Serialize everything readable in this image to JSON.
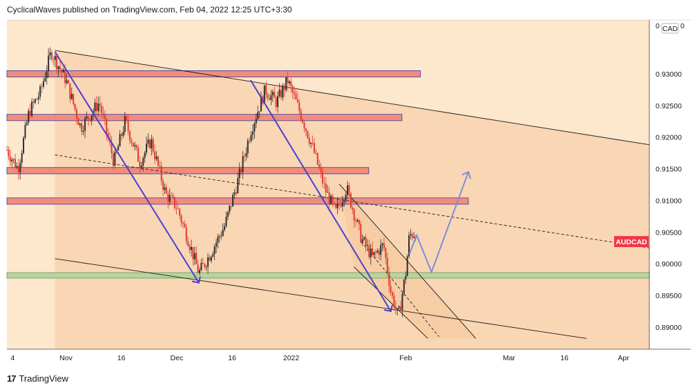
{
  "header": {
    "author": "CyclicalWaves",
    "text": " published on TradingView.com, Feb 04, 2022 12:25 UTC+3:30"
  },
  "footer": {
    "logo_glyph": "17",
    "brand": "TradingView"
  },
  "price_axis": {
    "currency": "CAD",
    "top_partial": "0",
    "top_right_partial": "0"
  },
  "symbol_tag": {
    "label": "AUDCAD",
    "color": "#f23645"
  },
  "colors": {
    "background": "#fde7cd",
    "zone_fill": "#f6c9a0",
    "resistance_fill": "#f28c7a",
    "support_fill": "#b7d3a2",
    "wave_line": "#4a3fd0",
    "projection_line": "#7b8ed8",
    "candle_up": "#2d2d2d",
    "candle_down": "#e0392b"
  },
  "chart_data": {
    "type": "candlestick",
    "symbol": "AUDCAD",
    "ylim": [
      0.8865,
      0.9385
    ],
    "yticks": [
      0.89,
      0.895,
      0.9,
      0.905,
      0.91,
      0.915,
      0.92,
      0.925,
      0.93
    ],
    "ytick_labels": [
      "0.89000",
      "0.89500",
      "0.90000",
      "0.90500",
      "0.91000",
      "0.91500",
      "0.92000",
      "0.92500",
      "0.93000"
    ],
    "xticks": [
      {
        "date": "2021-10-17",
        "label": "4"
      },
      {
        "date": "2021-11-01",
        "label": "Nov"
      },
      {
        "date": "2021-11-16",
        "label": "16"
      },
      {
        "date": "2021-12-01",
        "label": "Dec"
      },
      {
        "date": "2021-12-16",
        "label": "16"
      },
      {
        "date": "2022-01-01",
        "label": "2022"
      },
      {
        "date": "2022-02-01",
        "label": "Feb"
      },
      {
        "date": "2022-03-01",
        "label": "Mar"
      },
      {
        "date": "2022-03-16",
        "label": "16"
      },
      {
        "date": "2022-04-01",
        "label": "Apr"
      }
    ],
    "xlim": [
      "2021-10-16",
      "2022-04-08"
    ],
    "price_path": [
      {
        "date": "2021-10-16",
        "price": 0.918
      },
      {
        "date": "2021-10-19",
        "price": 0.915
      },
      {
        "date": "2021-10-22",
        "price": 0.924
      },
      {
        "date": "2021-10-25",
        "price": 0.927
      },
      {
        "date": "2021-10-28",
        "price": 0.9335
      },
      {
        "date": "2021-11-01",
        "price": 0.929
      },
      {
        "date": "2021-11-05",
        "price": 0.9215
      },
      {
        "date": "2021-11-10",
        "price": 0.9255
      },
      {
        "date": "2021-11-14",
        "price": 0.916
      },
      {
        "date": "2021-11-17",
        "price": 0.9225
      },
      {
        "date": "2021-11-21",
        "price": 0.916
      },
      {
        "date": "2021-11-24",
        "price": 0.9195
      },
      {
        "date": "2021-11-28",
        "price": 0.911
      },
      {
        "date": "2021-12-01",
        "price": 0.909
      },
      {
        "date": "2021-12-04",
        "price": 0.904
      },
      {
        "date": "2021-12-07",
        "price": 0.8985
      },
      {
        "date": "2021-12-10",
        "price": 0.9015
      },
      {
        "date": "2021-12-14",
        "price": 0.906
      },
      {
        "date": "2021-12-18",
        "price": 0.914
      },
      {
        "date": "2021-12-21",
        "price": 0.921
      },
      {
        "date": "2021-12-25",
        "price": 0.9275
      },
      {
        "date": "2021-12-28",
        "price": 0.9255
      },
      {
        "date": "2021-12-31",
        "price": 0.929
      },
      {
        "date": "2022-01-04",
        "price": 0.923
      },
      {
        "date": "2022-01-07",
        "price": 0.918
      },
      {
        "date": "2022-01-10",
        "price": 0.912
      },
      {
        "date": "2022-01-13",
        "price": 0.908
      },
      {
        "date": "2022-01-16",
        "price": 0.912
      },
      {
        "date": "2022-01-20",
        "price": 0.904
      },
      {
        "date": "2022-01-23",
        "price": 0.901
      },
      {
        "date": "2022-01-26",
        "price": 0.903
      },
      {
        "date": "2022-01-28",
        "price": 0.8955
      },
      {
        "date": "2022-01-30",
        "price": 0.8915
      },
      {
        "date": "2022-02-01",
        "price": 0.8985
      },
      {
        "date": "2022-02-02",
        "price": 0.9045
      },
      {
        "date": "2022-02-04",
        "price": 0.905
      }
    ],
    "horizontal_zones": [
      {
        "type": "resistance",
        "top": 0.9305,
        "bottom": 0.9295,
        "start": "2021-10-16",
        "end": "2022-02-05"
      },
      {
        "type": "resistance",
        "top": 0.9236,
        "bottom": 0.9226,
        "start": "2021-10-16",
        "end": "2022-01-31"
      },
      {
        "type": "resistance",
        "top": 0.9152,
        "bottom": 0.9142,
        "start": "2021-10-16",
        "end": "2022-01-22"
      },
      {
        "type": "resistance",
        "top": 0.9104,
        "bottom": 0.9094,
        "start": "2021-10-16",
        "end": "2022-02-18"
      },
      {
        "type": "support",
        "top": 0.8986,
        "bottom": 0.8978,
        "start": "2021-10-16",
        "end": "2022-04-08"
      }
    ],
    "channel_lines": [
      {
        "style": "solid",
        "points": [
          {
            "date": "2021-10-29",
            "price": 0.9337
          },
          {
            "date": "2022-04-08",
            "price": 0.9188
          }
        ]
      },
      {
        "style": "solid",
        "points": [
          {
            "date": "2021-10-29",
            "price": 0.9008
          },
          {
            "date": "2022-03-22",
            "price": 0.8882
          }
        ]
      },
      {
        "style": "dashed",
        "points": [
          {
            "date": "2021-10-29",
            "price": 0.9172
          },
          {
            "date": "2022-04-08",
            "price": 0.9025
          }
        ]
      },
      {
        "style": "solid",
        "points": [
          {
            "date": "2022-01-14",
            "price": 0.9126
          },
          {
            "date": "2022-02-20",
            "price": 0.8882
          }
        ]
      },
      {
        "style": "solid",
        "points": [
          {
            "date": "2022-01-18",
            "price": 0.8995
          },
          {
            "date": "2022-02-07",
            "price": 0.8882
          }
        ]
      },
      {
        "style": "dashed",
        "points": [
          {
            "date": "2022-01-20",
            "price": 0.9035
          },
          {
            "date": "2022-02-10",
            "price": 0.8885
          }
        ]
      }
    ],
    "wave_arrows": [
      {
        "points": [
          {
            "date": "2021-10-29",
            "price": 0.9335
          },
          {
            "date": "2021-12-07",
            "price": 0.897
          }
        ]
      },
      {
        "points": [
          {
            "date": "2021-12-21",
            "price": 0.929
          },
          {
            "date": "2022-01-28",
            "price": 0.8925
          }
        ]
      }
    ],
    "projection": [
      {
        "date": "2022-02-02",
        "price": 0.9015
      },
      {
        "date": "2022-02-04",
        "price": 0.9045
      },
      {
        "date": "2022-02-08",
        "price": 0.8987
      },
      {
        "date": "2022-02-18",
        "price": 0.9145
      }
    ],
    "last_price": 0.9035
  }
}
